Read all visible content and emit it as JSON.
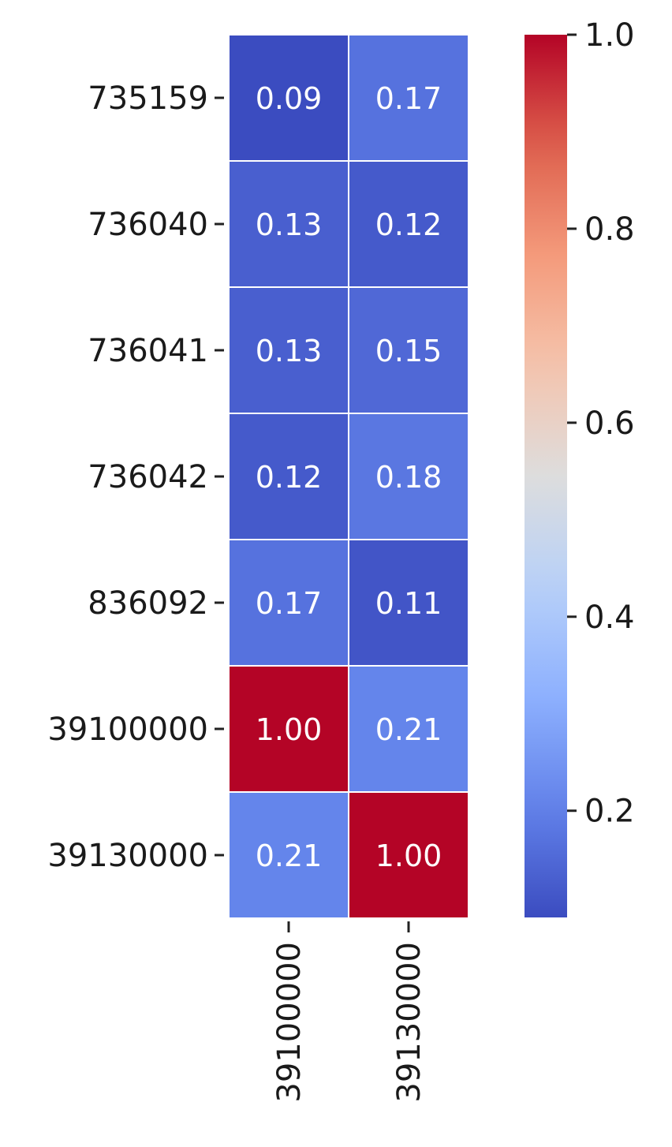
{
  "chart_data": {
    "type": "heatmap",
    "title": "",
    "xlabel": "",
    "ylabel": "",
    "rows": [
      "735159",
      "736040",
      "736041",
      "736042",
      "836092",
      "39100000",
      "39130000"
    ],
    "columns": [
      "39100000",
      "39130000"
    ],
    "values": [
      [
        0.09,
        0.17
      ],
      [
        0.13,
        0.12
      ],
      [
        0.13,
        0.15
      ],
      [
        0.12,
        0.18
      ],
      [
        0.17,
        0.11
      ],
      [
        1.0,
        0.21
      ],
      [
        0.21,
        1.0
      ]
    ],
    "value_format": "2 decimals",
    "annotations_shown": true,
    "annotation_color": "#ffffff",
    "colormap": "coolwarm",
    "colorbar": {
      "range": [
        0.09,
        1.0
      ],
      "ticks": [
        0.2,
        0.4,
        0.6,
        0.8,
        1.0
      ],
      "tick_labels": [
        "0.2",
        "0.4",
        "0.6",
        "0.8",
        "1.0"
      ],
      "placement": "right"
    },
    "x_tick_rotation": "vertical",
    "cell_separator_color": "#ffffff",
    "grid": false
  }
}
